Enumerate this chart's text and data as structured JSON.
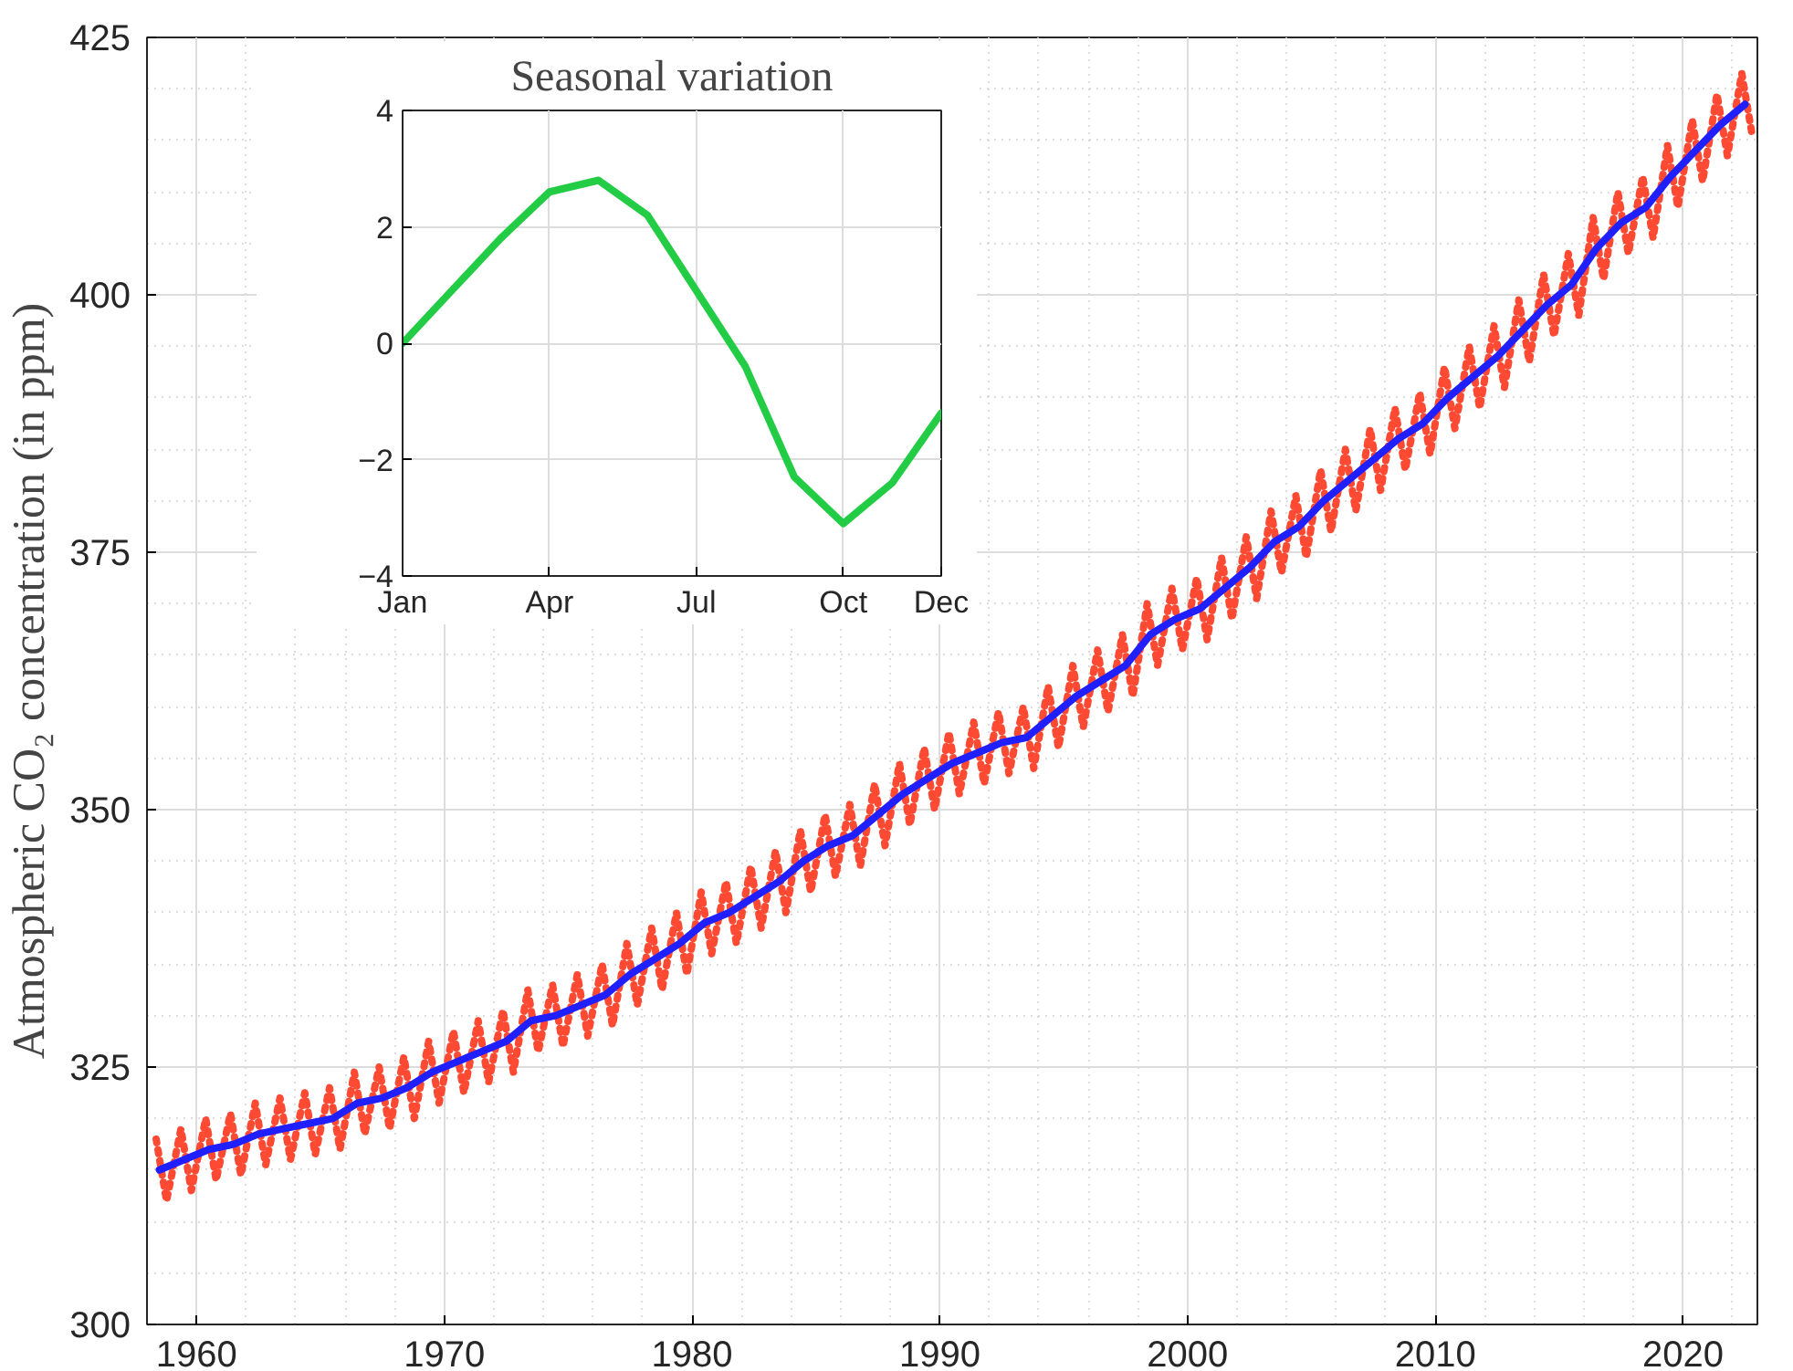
{
  "chart_data": [
    {
      "type": "line",
      "ylabel": "Atmospheric CO₂ concentration (in ppm)",
      "xlim": [
        1958,
        2023
      ],
      "xticks": [
        1960,
        1970,
        1980,
        1990,
        2000,
        2010,
        2020
      ],
      "ylim": [
        300,
        425
      ],
      "yticks": [
        300,
        325,
        350,
        375,
        400,
        425
      ],
      "grid": true,
      "series": [
        {
          "color": "#ff4a33",
          "line_style": "dotted",
          "x": [
            1958.37,
            1958.79,
            1959.37,
            1959.79,
            1960.37,
            1960.79,
            1961.37,
            1961.79,
            1962.37,
            1962.79,
            1963.37,
            1963.79,
            1964.37,
            1964.79,
            1965.37,
            1965.79,
            1966.37,
            1966.79,
            1967.37,
            1967.79,
            1968.37,
            1968.79,
            1969.37,
            1969.79,
            1970.37,
            1970.79,
            1971.37,
            1971.79,
            1972.37,
            1972.79,
            1973.37,
            1973.79,
            1974.37,
            1974.79,
            1975.37,
            1975.79,
            1976.37,
            1976.79,
            1977.37,
            1977.79,
            1978.37,
            1978.79,
            1979.37,
            1979.79,
            1980.37,
            1980.79,
            1981.37,
            1981.79,
            1982.37,
            1982.79,
            1983.37,
            1983.79,
            1984.37,
            1984.79,
            1985.37,
            1985.79,
            1986.37,
            1986.79,
            1987.37,
            1987.79,
            1988.37,
            1988.79,
            1989.37,
            1989.79,
            1990.37,
            1990.79,
            1991.37,
            1991.79,
            1992.37,
            1992.79,
            1993.37,
            1993.79,
            1994.37,
            1994.79,
            1995.37,
            1995.79,
            1996.37,
            1996.79,
            1997.37,
            1997.79,
            1998.37,
            1998.79,
            1999.37,
            1999.79,
            2000.37,
            2000.79,
            2001.37,
            2001.79,
            2002.37,
            2002.79,
            2003.37,
            2003.79,
            2004.37,
            2004.79,
            2005.37,
            2005.79,
            2006.37,
            2006.79,
            2007.37,
            2007.79,
            2008.37,
            2008.79,
            2009.37,
            2009.79,
            2010.37,
            2010.79,
            2011.37,
            2011.79,
            2012.37,
            2012.79,
            2013.37,
            2013.79,
            2014.37,
            2014.79,
            2015.37,
            2015.79,
            2016.37,
            2016.79,
            2017.37,
            2017.79,
            2018.37,
            2018.79,
            2019.37,
            2019.79,
            2020.37,
            2020.79,
            2021.37,
            2021.79,
            2022.37,
            2022.79
          ],
          "values": [
            318,
            312,
            319,
            313,
            320,
            314,
            320.5,
            314.5,
            321.5,
            315.5,
            322,
            316,
            322.5,
            316.5,
            323,
            317,
            324.5,
            318.5,
            325,
            319,
            326,
            320,
            327.5,
            321.5,
            328.5,
            322.5,
            329.5,
            323.5,
            330.5,
            324.5,
            332.5,
            326.5,
            333,
            327,
            334,
            328,
            335,
            329,
            337,
            331,
            338.5,
            332.5,
            340,
            334,
            342,
            336,
            343,
            337,
            344.5,
            338.5,
            346,
            340,
            348,
            342,
            349.5,
            343.5,
            350.5,
            344.5,
            352.5,
            346.5,
            354.5,
            348.5,
            356,
            350,
            357.5,
            351.5,
            358.5,
            352.5,
            359.5,
            353.5,
            360,
            354,
            362,
            356,
            364,
            358,
            365.5,
            359.5,
            367,
            361,
            370,
            364,
            371.5,
            365.5,
            372.5,
            366.5,
            374.5,
            368.5,
            376.5,
            370.5,
            379,
            373,
            380.5,
            374.5,
            383,
            377,
            385,
            379,
            387,
            381,
            389,
            383,
            390.5,
            384.5,
            393,
            387,
            395,
            389,
            397,
            391,
            399.5,
            393.5,
            402,
            396,
            404,
            398,
            407.5,
            401.5,
            410,
            404,
            411.5,
            405.5,
            414.5,
            408.5,
            417,
            411,
            419.5,
            413.5,
            421.5,
            415.5
          ]
        },
        {
          "color": "#1f1fff",
          "line_style": "solid",
          "x": [
            1958.5,
            1959.5,
            1960.5,
            1961.5,
            1962.5,
            1963.5,
            1964.5,
            1965.5,
            1966.5,
            1967.5,
            1968.5,
            1969.5,
            1970.5,
            1971.5,
            1972.5,
            1973.5,
            1974.5,
            1975.5,
            1976.5,
            1977.5,
            1978.5,
            1979.5,
            1980.5,
            1981.5,
            1982.5,
            1983.5,
            1984.5,
            1985.5,
            1986.5,
            1987.5,
            1988.5,
            1989.5,
            1990.5,
            1991.5,
            1992.5,
            1993.5,
            1994.5,
            1995.5,
            1996.5,
            1997.5,
            1998.5,
            1999.5,
            2000.5,
            2001.5,
            2002.5,
            2003.5,
            2004.5,
            2005.5,
            2006.5,
            2007.5,
            2008.5,
            2009.5,
            2010.5,
            2011.5,
            2012.5,
            2013.5,
            2014.5,
            2015.5,
            2016.5,
            2017.5,
            2018.5,
            2019.5,
            2020.5,
            2021.5,
            2022.5
          ],
          "values": [
            315,
            316,
            317,
            317.5,
            318.5,
            319,
            319.5,
            320,
            321.5,
            322,
            323,
            324.5,
            325.5,
            326.5,
            327.5,
            329.5,
            330,
            331,
            332,
            334,
            335.5,
            337,
            339,
            340,
            341.5,
            343,
            345,
            346.5,
            347.5,
            349.5,
            351.5,
            353,
            354.5,
            355.5,
            356.5,
            357,
            359,
            361,
            362.5,
            364,
            367,
            368.5,
            369.5,
            371.5,
            373.5,
            376,
            377.5,
            380,
            382,
            384,
            386,
            387.5,
            390,
            392,
            394,
            396.5,
            399,
            401,
            404.5,
            407,
            408.5,
            411.5,
            414,
            416.5,
            418.5
          ]
        }
      ]
    },
    {
      "type": "line",
      "title": "Seasonal variation",
      "categories": [
        "Jan",
        null,
        null,
        "Apr",
        null,
        null,
        "Jul",
        null,
        null,
        "Oct",
        null,
        "Dec"
      ],
      "ylim": [
        -4,
        4
      ],
      "yticks": [
        -4,
        -2,
        0,
        2,
        4
      ],
      "grid": true,
      "series": [
        {
          "color": "#22cc44",
          "line_style": "solid",
          "values": [
            0,
            0.9,
            1.8,
            2.6,
            2.8,
            2.2,
            0.9,
            -0.4,
            -2.3,
            -3.1,
            -2.4,
            -1.2
          ]
        }
      ]
    }
  ]
}
